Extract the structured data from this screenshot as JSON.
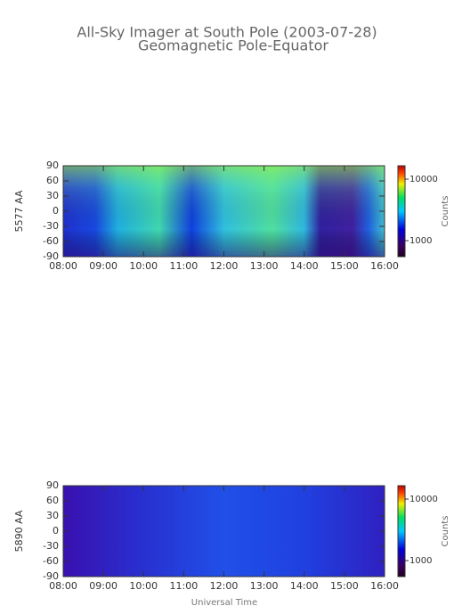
{
  "title": "All-Sky Imager at South Pole (2003-07-28)",
  "subtitle": "Geomagnetic Pole-Equator",
  "x_label": "Universal Time",
  "chart_data": [
    {
      "type": "heatmap",
      "y_label": "5577 AA",
      "xlim": [
        8,
        16
      ],
      "xticks": [
        {
          "value": 8,
          "label": "08:00"
        },
        {
          "value": 9,
          "label": "09:00"
        },
        {
          "value": 10,
          "label": "10:00"
        },
        {
          "value": 11,
          "label": "11:00"
        },
        {
          "value": 12,
          "label": "12:00"
        },
        {
          "value": 13,
          "label": "13:00"
        },
        {
          "value": 14,
          "label": "14:00"
        },
        {
          "value": 15,
          "label": "15:00"
        },
        {
          "value": 16,
          "label": "16:00"
        }
      ],
      "ylim": [
        -90,
        90
      ],
      "yticks": [
        -90,
        -60,
        -30,
        0,
        30,
        60,
        90
      ],
      "colorbar_label": "Counts",
      "clim": [
        550,
        16500
      ],
      "cticks": [
        1000,
        10000
      ],
      "log_scale_color": true
    },
    {
      "type": "heatmap",
      "y_label": "5890 AA",
      "xlim": [
        8,
        16
      ],
      "xticks": [
        {
          "value": 8,
          "label": "08:00"
        },
        {
          "value": 9,
          "label": "09:00"
        },
        {
          "value": 10,
          "label": "10:00"
        },
        {
          "value": 11,
          "label": "11:00"
        },
        {
          "value": 12,
          "label": "12:00"
        },
        {
          "value": 13,
          "label": "13:00"
        },
        {
          "value": 14,
          "label": "14:00"
        },
        {
          "value": 15,
          "label": "15:00"
        },
        {
          "value": 16,
          "label": "16:00"
        }
      ],
      "ylim": [
        -90,
        90
      ],
      "yticks": [
        -90,
        -60,
        -30,
        0,
        30,
        60,
        90
      ],
      "colorbar_label": "Counts",
      "clim": [
        550,
        16500
      ],
      "cticks": [
        1000,
        10000
      ],
      "log_scale_color": true
    }
  ]
}
